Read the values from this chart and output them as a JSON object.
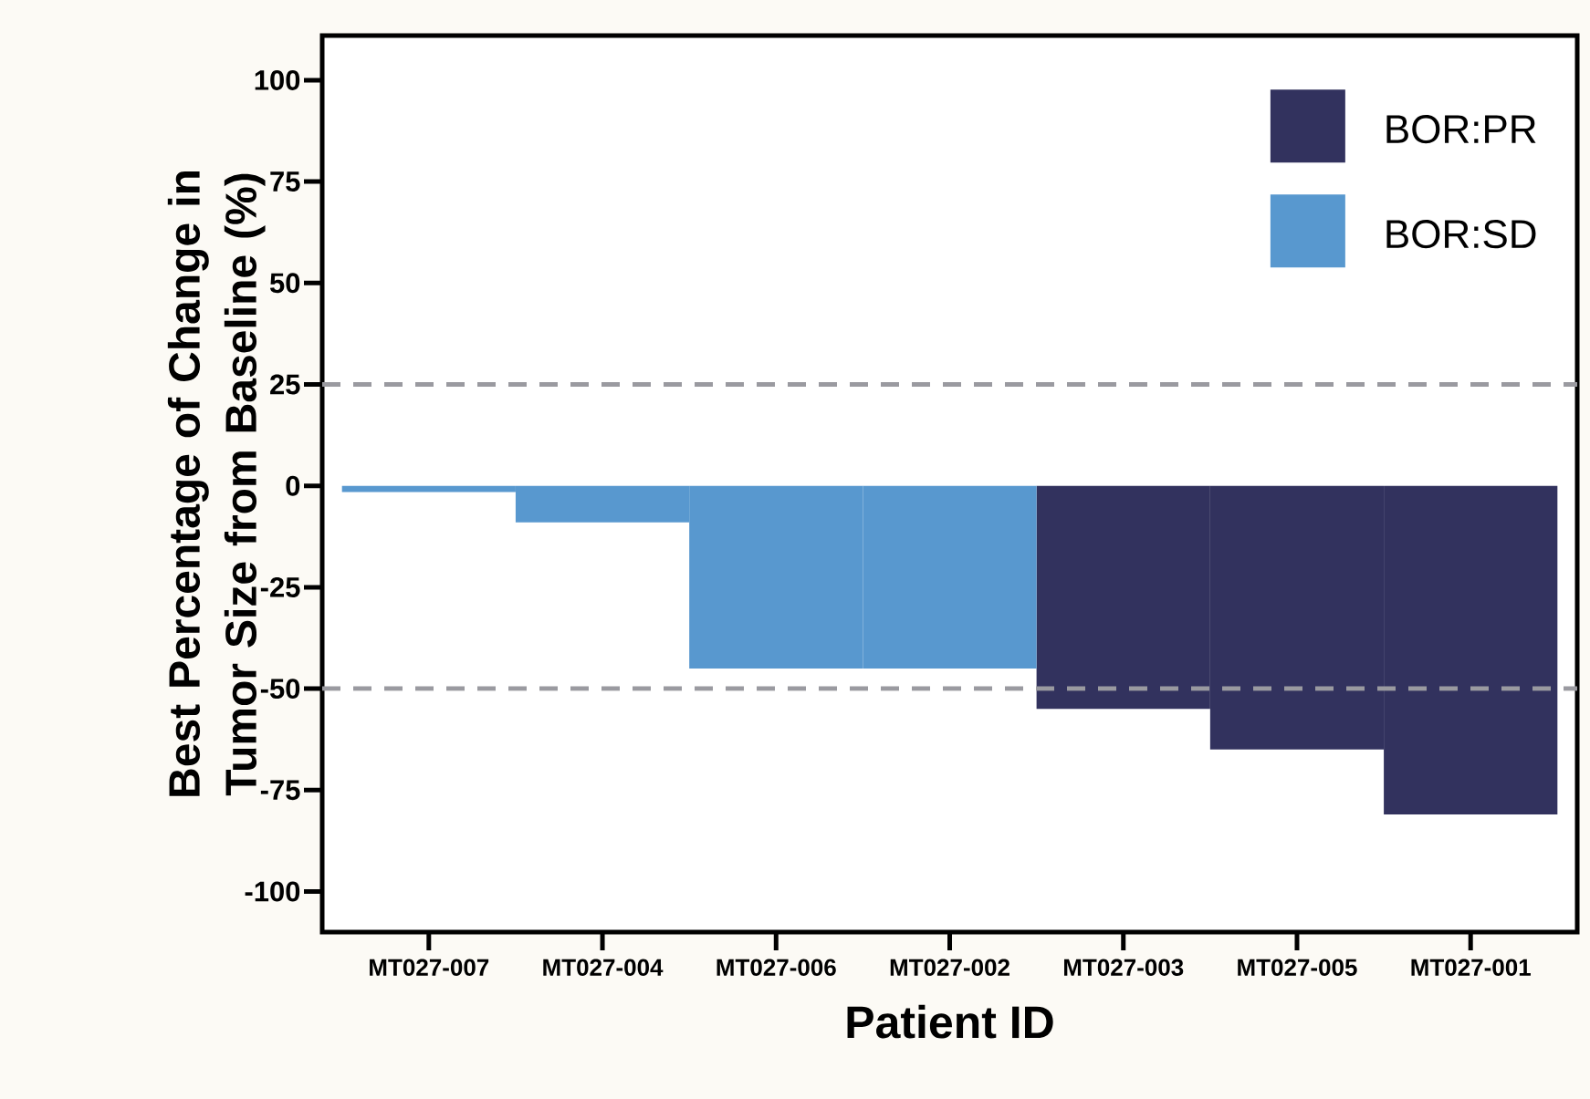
{
  "chart_data": {
    "type": "bar",
    "xlabel": "Patient ID",
    "ylabel": "Best Percentage of Change in Tumor Size from Baseline (%)",
    "categories": [
      "MT027-007",
      "MT027-004",
      "MT027-006",
      "MT027-002",
      "MT027-003",
      "MT027-005",
      "MT027-001"
    ],
    "series": [
      {
        "name": "BOR:PR",
        "color": "#32325e",
        "values": [
          null,
          null,
          null,
          null,
          -55,
          -65,
          -81
        ]
      },
      {
        "name": "BOR:SD",
        "color": "#5898cf",
        "values": [
          -1.5,
          -9,
          -45,
          -45,
          null,
          null,
          null
        ]
      }
    ],
    "ylim": [
      -110,
      111
    ],
    "yticks": [
      -100,
      -75,
      -50,
      -25,
      0,
      25,
      50,
      75,
      100
    ],
    "ref_lines": [
      {
        "axis": "y",
        "value": 25,
        "color": "#9a9aa0",
        "line_style": "dashed"
      },
      {
        "axis": "y",
        "value": -50,
        "color": "#9a9aa0",
        "line_style": "dashed"
      }
    ],
    "legend": "top right",
    "grid": false
  }
}
